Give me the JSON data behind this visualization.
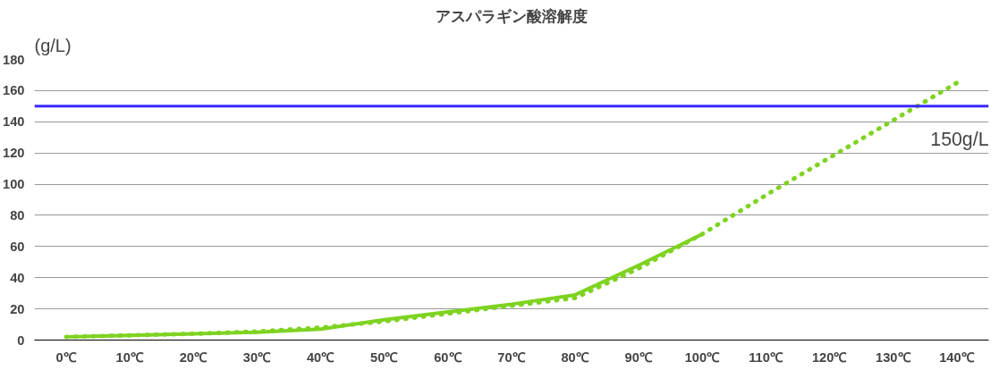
{
  "chart_data": {
    "type": "line",
    "title": "アスパラギン酸溶解度",
    "ylabel": "(g/L)",
    "categories": [
      "0℃",
      "10℃",
      "20℃",
      "30℃",
      "40℃",
      "50℃",
      "60℃",
      "70℃",
      "80℃",
      "90℃",
      "100℃",
      "110℃",
      "120℃",
      "130℃",
      "140℃"
    ],
    "series": [
      {
        "color": "#7ed321",
        "line_style": "dotted",
        "values": [
          2,
          3,
          4,
          5.5,
          8,
          12,
          17,
          22,
          27,
          46,
          68,
          93,
          117,
          141,
          165
        ]
      },
      {
        "color": "#7ed321",
        "line_style": "solid",
        "values": [
          2,
          3,
          4,
          5,
          7,
          13,
          18,
          23,
          29,
          48,
          68,
          null,
          null,
          null,
          null
        ]
      }
    ],
    "ylim": [
      0,
      180
    ],
    "yticks": [
      0,
      20,
      40,
      60,
      80,
      100,
      120,
      140,
      160,
      180
    ],
    "grid": "y",
    "ref_lines": [
      {
        "axis": "y",
        "value": 150,
        "label": "150g/L",
        "color": "#3b28ff"
      }
    ]
  }
}
